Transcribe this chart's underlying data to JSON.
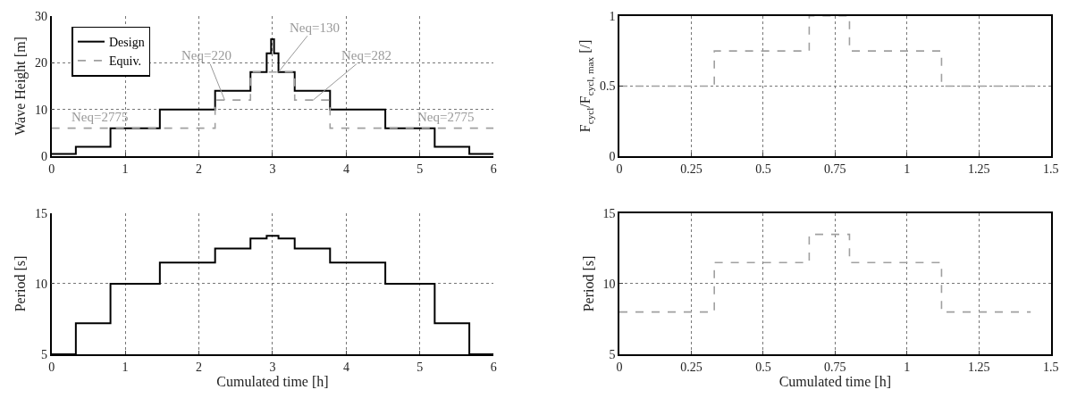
{
  "chart_data": [
    {
      "type": "step",
      "ylabel": "Wave Height [m]",
      "xlim": [
        0,
        6
      ],
      "xticks": [
        0,
        1,
        2,
        3,
        4,
        5,
        6
      ],
      "ylim": [
        0,
        30
      ],
      "yticks": [
        0,
        10,
        20,
        30
      ],
      "grid": true,
      "legend": "top left",
      "tick_labels": true,
      "series": [
        {
          "name": "Design",
          "color": "#000000",
          "line_style": "solid",
          "x": [
            0,
            0.33,
            0.8,
            1.47,
            2.22,
            2.7,
            2.92,
            2.98,
            3.02,
            3.08,
            3.3,
            3.78,
            4.53,
            5.2,
            5.67,
            6
          ],
          "values": [
            0.5,
            2,
            6,
            10,
            14,
            18,
            22,
            25,
            22,
            18,
            14,
            10,
            6,
            2,
            0.5,
            0.5
          ]
        },
        {
          "name": "Equiv.",
          "color": "#a0a0a0",
          "line_style": "dashed",
          "x": [
            0,
            2.22,
            2.7,
            3.3,
            3.78,
            6
          ],
          "values": [
            6,
            12,
            18,
            12,
            6,
            6
          ]
        }
      ],
      "annotations": [
        {
          "text": "Neq=2775",
          "x": 0.65,
          "y": 6
        },
        {
          "text": "Neq=220",
          "x": 2.35,
          "y": 12
        },
        {
          "text": "Neq=130",
          "x": 3.08,
          "y": 18
        },
        {
          "text": "Neq=282",
          "x": 3.55,
          "y": 12
        },
        {
          "text": "Neq=2775",
          "x": 5.35,
          "y": 6
        }
      ]
    },
    {
      "type": "step",
      "ylabel": "F$_{cycl}$/F$_{cycl, max}$ [/]",
      "xlim": [
        0,
        1.5
      ],
      "xticks": [
        0,
        0.25,
        0.5,
        0.75,
        1,
        1.25,
        1.5
      ],
      "ylim": [
        0,
        1
      ],
      "yticks": [
        0,
        0.5,
        1
      ],
      "grid": true,
      "series": [
        {
          "color": "#a0a0a0",
          "line_style": "dashed",
          "x": [
            0,
            0.33,
            0.66,
            0.8,
            1.12,
            1.45
          ],
          "values": [
            0.5,
            0.75,
            1,
            0.75,
            0.5,
            0.5
          ]
        }
      ]
    },
    {
      "type": "step",
      "xlabel": "Cumulated time [h]",
      "ylabel": "Period [s]",
      "xlim": [
        0,
        6
      ],
      "xticks": [
        0,
        1,
        2,
        3,
        4,
        5,
        6
      ],
      "ylim": [
        5,
        15
      ],
      "yticks": [
        5,
        10,
        15
      ],
      "grid": true,
      "series": [
        {
          "color": "#000000",
          "line_style": "solid",
          "x": [
            0,
            0.33,
            0.8,
            1.47,
            2.22,
            2.7,
            2.92,
            3.08,
            3.3,
            3.78,
            4.53,
            5.2,
            5.67,
            6
          ],
          "values": [
            5,
            7.2,
            10,
            11.5,
            12.5,
            13.2,
            13.4,
            13.2,
            12.5,
            11.5,
            10,
            7.2,
            5,
            5
          ]
        }
      ]
    },
    {
      "type": "step",
      "xlabel": "Cumulated time [h]",
      "ylabel": "Period [s]",
      "xlim": [
        0,
        1.5
      ],
      "xticks": [
        0,
        0.25,
        0.5,
        0.75,
        1,
        1.25,
        1.5
      ],
      "ylim": [
        5,
        15
      ],
      "yticks": [
        5,
        10,
        15
      ],
      "grid": true,
      "series": [
        {
          "color": "#a0a0a0",
          "line_style": "dashed",
          "x": [
            0,
            0.33,
            0.66,
            0.8,
            1.12,
            1.43
          ],
          "values": [
            8,
            11.5,
            13.5,
            11.5,
            8,
            8
          ]
        }
      ]
    }
  ]
}
